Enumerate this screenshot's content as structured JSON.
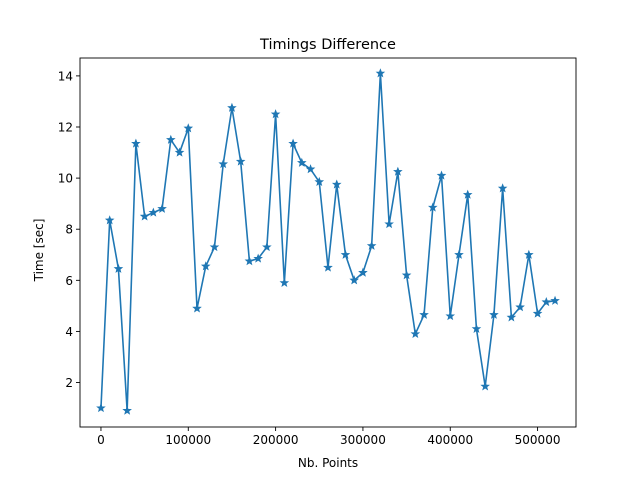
{
  "chart_data": {
    "type": "line",
    "title": "Timings Difference",
    "xlabel": "Nb. Points",
    "ylabel": "Time [sec]",
    "xlim": [
      -24000,
      544000
    ],
    "ylim": [
      0.26,
      14.7
    ],
    "xticks": [
      0,
      100000,
      200000,
      300000,
      400000,
      500000
    ],
    "xtick_labels": [
      "0",
      "100000",
      "200000",
      "300000",
      "400000",
      "500000"
    ],
    "yticks": [
      2,
      4,
      6,
      8,
      10,
      12,
      14
    ],
    "ytick_labels": [
      "2",
      "4",
      "6",
      "8",
      "10",
      "12",
      "14"
    ],
    "grid": false,
    "marker": "star",
    "color": "#1f77b4",
    "series": [
      {
        "x": [
          0,
          10000,
          20000,
          30000,
          40000,
          50000,
          60000,
          70000,
          80000,
          90000,
          100000,
          110000,
          120000,
          130000,
          140000,
          150000,
          160000,
          170000,
          180000,
          190000,
          200000,
          210000,
          220000,
          230000,
          240000,
          250000,
          260000,
          270000,
          280000,
          290000,
          300000,
          310000,
          320000,
          330000,
          340000,
          350000,
          360000,
          370000,
          380000,
          390000,
          400000,
          410000,
          420000,
          430000,
          440000,
          450000,
          460000,
          470000,
          480000,
          490000,
          500000,
          510000,
          520000
        ],
        "y": [
          1.0,
          8.35,
          6.45,
          0.9,
          11.35,
          8.5,
          8.65,
          8.8,
          11.5,
          11.0,
          11.95,
          4.9,
          6.55,
          7.3,
          10.55,
          12.75,
          10.65,
          6.75,
          6.85,
          7.3,
          12.5,
          5.9,
          11.35,
          10.6,
          10.35,
          9.85,
          6.5,
          9.75,
          7.0,
          6.0,
          6.3,
          7.35,
          14.1,
          8.2,
          10.25,
          6.2,
          3.9,
          4.65,
          8.85,
          10.1,
          4.6,
          7.0,
          9.35,
          4.1,
          1.85,
          4.65,
          9.6,
          4.55,
          4.95,
          7.0,
          4.7,
          5.15,
          5.2
        ]
      }
    ]
  }
}
